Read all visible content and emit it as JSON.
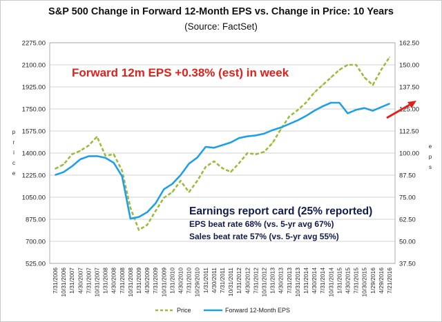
{
  "chart_data": {
    "type": "line",
    "title": "S&P 500 Change in Forward 12-Month EPS vs. Change in Price: 10 Years",
    "subtitle": "(Source: FactSet)",
    "ylabel_left": "Price",
    "ylabel_right": "EPS",
    "ylim_left": [
      525,
      2275
    ],
    "ylim_right": [
      37.5,
      162.5
    ],
    "left_ticks": [
      "2275.00",
      "2100.00",
      "1925.00",
      "1750.00",
      "1575.00",
      "1400.00",
      "1225.00",
      "1050.00",
      "875.00",
      "700.00",
      "525.00"
    ],
    "right_ticks": [
      "162.50",
      "150.00",
      "137.50",
      "125.00",
      "112.50",
      "100.00",
      "87.50",
      "75.00",
      "62.50",
      "50.00",
      "37.50"
    ],
    "x_labels": [
      "7/31/2006",
      "10/31/2006",
      "1/31/2007",
      "4/30/2007",
      "7/31/2007",
      "10/31/2007",
      "1/31/2008",
      "4/30/2008",
      "7/31/2008",
      "10/31/2008",
      "1/31/2009",
      "4/30/2009",
      "7/31/2009",
      "10/31/2009",
      "1/31/2010",
      "4/30/2010",
      "7/31/2010",
      "10/29/2010",
      "1/31/2011",
      "4/30/2011",
      "7/31/2011",
      "10/31/2011",
      "1/31/2012",
      "4/30/2012",
      "7/31/2012",
      "10/31/2012",
      "1/31/2013",
      "4/30/2013",
      "7/31/2013",
      "10/31/2013",
      "1/31/2014",
      "4/30/2014",
      "7/31/2014",
      "10/31/2014",
      "1/31/2015",
      "4/30/2015",
      "7/31/2015",
      "10/30/2015",
      "1/29/2016",
      "4/29/2016",
      "7/21/2016"
    ],
    "grid": true,
    "legend_position": "bottom",
    "series": [
      {
        "name": "Price",
        "axis": "left",
        "color": "#9bbb3c",
        "style": "dashed",
        "values": [
          1276,
          1310,
          1390,
          1418,
          1460,
          1530,
          1380,
          1390,
          1260,
          966,
          790,
          830,
          940,
          1045,
          1090,
          1180,
          1090,
          1180,
          1290,
          1335,
          1280,
          1250,
          1320,
          1400,
          1390,
          1410,
          1480,
          1590,
          1690,
          1740,
          1800,
          1880,
          1940,
          2000,
          2060,
          2100,
          2100,
          2000,
          1940,
          2060,
          2160
        ]
      },
      {
        "name": "Forward 12-Month EPS",
        "axis": "right",
        "color": "#1ea0e6",
        "style": "solid",
        "values": [
          87.6,
          89.2,
          92.5,
          96.5,
          98.2,
          98.3,
          97.3,
          94.5,
          86.8,
          62.8,
          63.8,
          66.5,
          71.5,
          79.5,
          82.5,
          87.5,
          94.0,
          97.5,
          103.5,
          103.0,
          104.5,
          106.0,
          108.5,
          109.5,
          110.0,
          111.0,
          113.0,
          114.5,
          116.5,
          118.5,
          121.0,
          124.0,
          126.5,
          128.5,
          128.5,
          122.5,
          124.5,
          125.5,
          124.0,
          126.0,
          128.0
        ]
      }
    ],
    "annotations": [
      "Forward 12m EPS +0.38% (est) in week",
      "Earnings report card (25% reported)",
      "EPS beat rate 68% (vs. 5-yr avg 67%)",
      "Sales beat rate 57% (vs. 5-yr avg 55%)"
    ]
  }
}
